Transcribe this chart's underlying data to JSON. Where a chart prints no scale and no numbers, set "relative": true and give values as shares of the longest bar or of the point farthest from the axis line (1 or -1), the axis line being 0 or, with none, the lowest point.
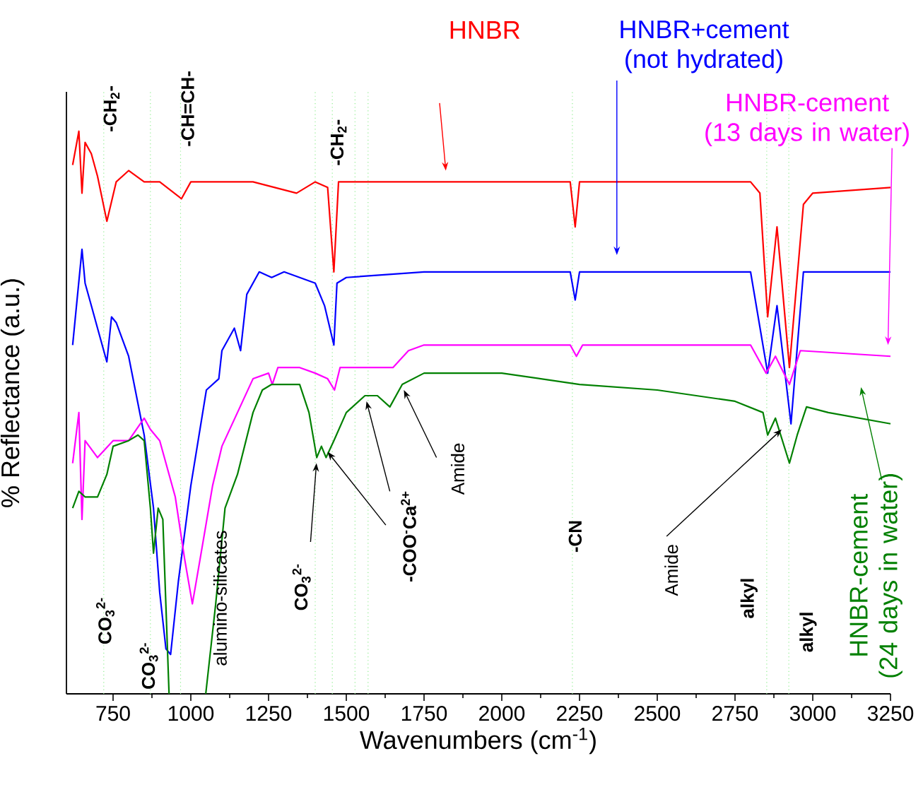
{
  "chart_data": {
    "type": "line",
    "relative": true,
    "xlabel": "Wavenumbers (cm$^{-1}$)",
    "ylabel": "% Reflectance (a.u.)",
    "xlim": [
      600,
      3250
    ],
    "xticks": [
      750,
      1000,
      1250,
      1500,
      1750,
      2000,
      2250,
      2500,
      2750,
      3000,
      3250
    ],
    "series": [
      {
        "name": "HNBR",
        "color": "#ff0000",
        "x": [
          620,
          640,
          650,
          660,
          680,
          700,
          730,
          760,
          800,
          850,
          900,
          970,
          1000,
          1200,
          1340,
          1400,
          1440,
          1460,
          1475,
          1750,
          2000,
          2220,
          2236,
          2250,
          2800,
          2830,
          2855,
          2885,
          2925,
          2970,
          3000,
          3250
        ],
        "values": [
          0.94,
          1.0,
          0.89,
          0.98,
          0.96,
          0.92,
          0.84,
          0.91,
          0.93,
          0.91,
          0.91,
          0.88,
          0.91,
          0.91,
          0.89,
          0.91,
          0.9,
          0.75,
          0.91,
          0.91,
          0.91,
          0.91,
          0.83,
          0.91,
          0.91,
          0.89,
          0.67,
          0.83,
          0.58,
          0.87,
          0.89,
          0.9
        ]
      },
      {
        "name": "HNBR+cement (not hydrated)",
        "color": "#0000ff",
        "x": [
          620,
          650,
          660,
          680,
          700,
          730,
          745,
          760,
          800,
          850,
          880,
          900,
          920,
          935,
          960,
          1000,
          1050,
          1090,
          1100,
          1140,
          1160,
          1180,
          1220,
          1260,
          1300,
          1350,
          1400,
          1430,
          1460,
          1470,
          1500,
          1750,
          2000,
          2220,
          2236,
          2250,
          2800,
          2855,
          2885,
          2930,
          2970,
          3250
        ],
        "values": [
          0.62,
          0.79,
          0.73,
          0.69,
          0.65,
          0.59,
          0.67,
          0.66,
          0.6,
          0.46,
          0.33,
          0.18,
          0.08,
          0.07,
          0.2,
          0.37,
          0.54,
          0.56,
          0.61,
          0.65,
          0.61,
          0.71,
          0.75,
          0.74,
          0.75,
          0.74,
          0.73,
          0.69,
          0.62,
          0.73,
          0.74,
          0.75,
          0.75,
          0.75,
          0.7,
          0.75,
          0.75,
          0.57,
          0.69,
          0.48,
          0.75,
          0.75
        ]
      },
      {
        "name": "HNBR-cement (13 days in water)",
        "color": "#ff00ff",
        "x": [
          620,
          640,
          650,
          660,
          700,
          750,
          800,
          850,
          870,
          900,
          950,
          980,
          1005,
          1030,
          1070,
          1100,
          1150,
          1200,
          1250,
          1262,
          1280,
          1350,
          1400,
          1440,
          1462,
          1480,
          1600,
          1650,
          1700,
          1750,
          2000,
          2220,
          2240,
          2260,
          2800,
          2850,
          2880,
          2925,
          2960,
          3250
        ],
        "values": [
          0.41,
          0.5,
          0.31,
          0.45,
          0.42,
          0.45,
          0.45,
          0.49,
          0.47,
          0.45,
          0.35,
          0.24,
          0.16,
          0.24,
          0.37,
          0.44,
          0.5,
          0.56,
          0.57,
          0.55,
          0.58,
          0.58,
          0.57,
          0.56,
          0.54,
          0.58,
          0.58,
          0.58,
          0.61,
          0.62,
          0.62,
          0.62,
          0.6,
          0.62,
          0.62,
          0.57,
          0.6,
          0.55,
          0.61,
          0.6
        ]
      },
      {
        "name": "HNBR-cement (24 days in water)",
        "color": "#008000",
        "x": [
          620,
          640,
          660,
          700,
          730,
          750,
          800,
          830,
          850,
          870,
          880,
          895,
          910,
          930,
          990,
          1048,
          1080,
          1110,
          1150,
          1200,
          1230,
          1260,
          1300,
          1350,
          1380,
          1405,
          1420,
          1435,
          1460,
          1500,
          1560,
          1600,
          1640,
          1680,
          1750,
          2000,
          2250,
          2500,
          2750,
          2840,
          2855,
          2880,
          2925,
          2950,
          2980,
          3050,
          3250
        ],
        "values": [
          0.33,
          0.36,
          0.35,
          0.35,
          0.39,
          0.44,
          0.45,
          0.46,
          0.45,
          0.33,
          0.25,
          0.33,
          0.31,
          0,
          null,
          0,
          0.16,
          0.33,
          0.39,
          0.5,
          0.54,
          0.55,
          0.55,
          0.55,
          0.5,
          0.42,
          0.44,
          0.42,
          0.45,
          0.5,
          0.53,
          0.53,
          0.51,
          0.55,
          0.57,
          0.57,
          0.55,
          0.54,
          0.52,
          0.5,
          0.46,
          0.49,
          0.41,
          0.46,
          0.51,
          0.5,
          0.48
        ]
      }
    ],
    "ref_lines": [
      {
        "axis": "x",
        "value": 720,
        "color": "#90ee90",
        "line_style": "dotted"
      },
      {
        "axis": "x",
        "value": 870,
        "color": "#90ee90",
        "line_style": "dotted"
      },
      {
        "axis": "x",
        "value": 967,
        "color": "#90ee90",
        "line_style": "dotted"
      },
      {
        "axis": "x",
        "value": 1400,
        "color": "#90ee90",
        "line_style": "dotted"
      },
      {
        "axis": "x",
        "value": 1455,
        "color": "#90ee90",
        "line_style": "dotted"
      },
      {
        "axis": "x",
        "value": 1528,
        "color": "#90ee90",
        "line_style": "dotted"
      },
      {
        "axis": "x",
        "value": 1570,
        "color": "#90ee90",
        "line_style": "dotted"
      },
      {
        "axis": "x",
        "value": 2227,
        "color": "#90ee90",
        "line_style": "dotted"
      },
      {
        "axis": "x",
        "value": 2852,
        "color": "#90ee90",
        "line_style": "dotted"
      },
      {
        "axis": "x",
        "value": 2923,
        "color": "#90ee90",
        "line_style": "dotted"
      }
    ],
    "annotations": [
      "-CH$_{2}$-",
      "-CH=CH-",
      "-CH$_{2}$-",
      "CO$_{3}$$^{2-}$",
      "CO$_{3}$$^{2-}$",
      "alumino-silicates",
      "CO$_{3}$$^{2-}$",
      "-COO$^{-}$Ca$^{2+}$",
      "Amide",
      "-CN",
      "Amide",
      "alkyl",
      "alkyl"
    ]
  }
}
